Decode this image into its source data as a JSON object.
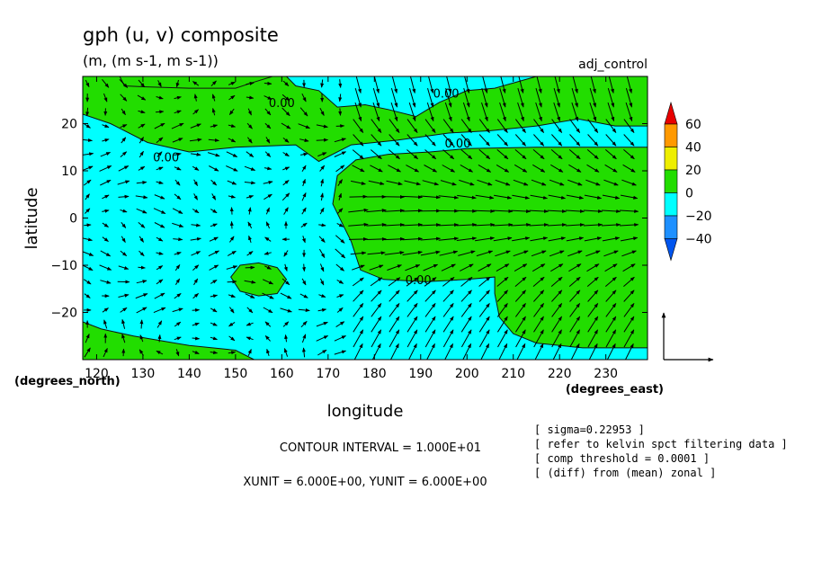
{
  "chart_data": {
    "type": "contour",
    "title": "gph (u, v) composite",
    "subtitle": "(m, (m s-1, m s-1))",
    "experiment": "adj_control",
    "xlabel": "longitude",
    "ylabel": "latitude",
    "x_unit_label": "(degrees_east)",
    "y_unit_label": "(degrees_north)",
    "xlim": [
      117,
      239
    ],
    "ylim": [
      -30,
      30
    ],
    "x_ticks": [
      120,
      130,
      140,
      150,
      160,
      170,
      180,
      190,
      200,
      210,
      220,
      230
    ],
    "x_tick_labels": [
      "120",
      "130",
      "140",
      "150",
      "160",
      "170",
      "180",
      "190",
      "200",
      "210",
      "220",
      "230"
    ],
    "y_ticks": [
      20,
      10,
      0,
      -10,
      -20
    ],
    "y_tick_labels": [
      "20",
      "10",
      "0",
      "−10",
      "−20"
    ],
    "contour_interval": "CONTOUR INTERVAL = 1.000E+01",
    "vector_units": "XUNIT = 6.000E+00, YUNIT = 6.000E+00",
    "contour_labels": [
      {
        "text": "0.00",
        "lon": 160,
        "lat": 23.5
      },
      {
        "text": "0.00",
        "lon": 135,
        "lat": 12
      },
      {
        "text": "0.00",
        "lon": 195.5,
        "lat": 25.5
      },
      {
        "text": "0.00",
        "lon": 198,
        "lat": 15
      },
      {
        "text": "0.00",
        "lon": 189.5,
        "lat": -14
      }
    ],
    "colorbar": {
      "levels": [
        "60",
        "40",
        "20",
        "0",
        "−20",
        "−40"
      ],
      "colors": [
        "#e80000",
        "#ff9900",
        "#eeee00",
        "#22dd00",
        "#00ffff",
        "#1e90ff",
        "#0055ee"
      ]
    },
    "fill_colors": {
      "positive": "#22dd00",
      "negative": "#00ffff"
    },
    "notes": [
      "[ sigma=0.22953 ]",
      "[ refer to kelvin spct filtering data ]",
      "[ comp threshold = 0.0001 ]",
      "[ (diff) from (mean) zonal ]"
    ]
  }
}
